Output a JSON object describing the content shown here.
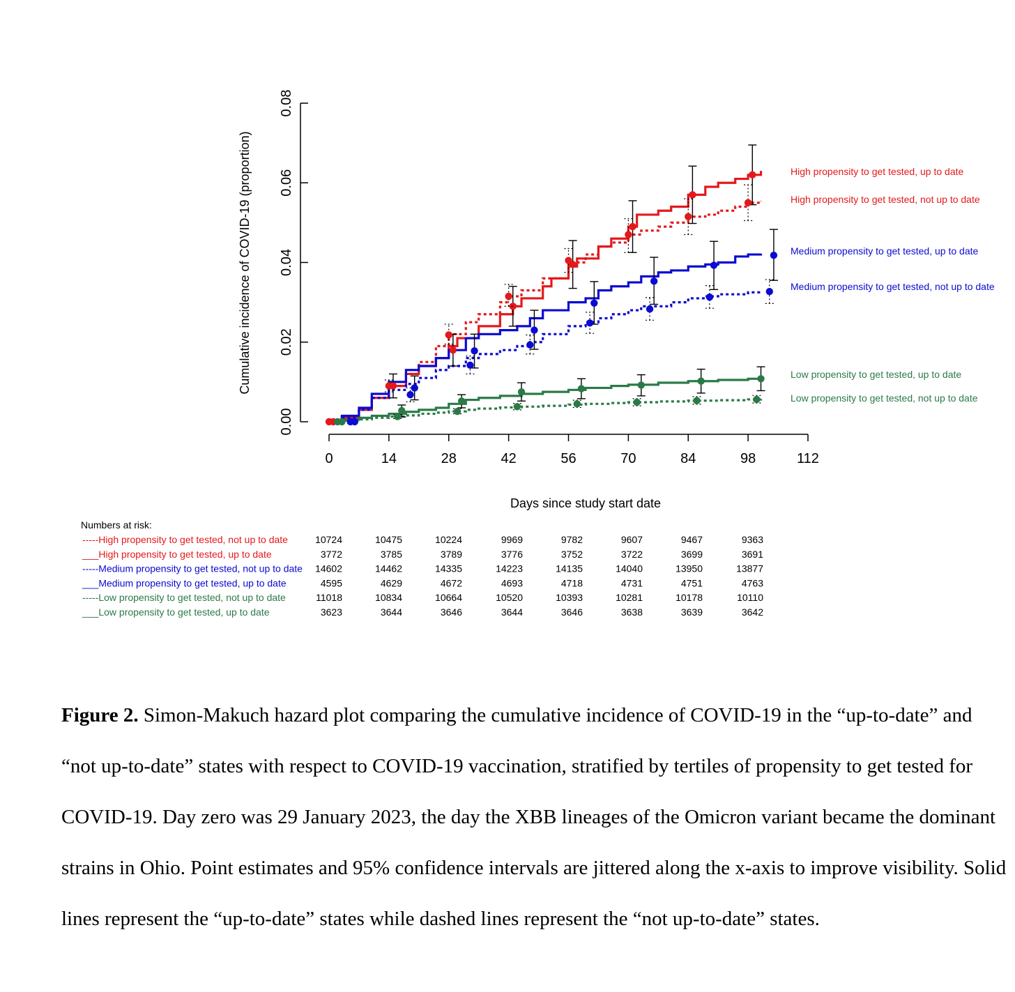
{
  "chart_data": {
    "type": "line",
    "title": "",
    "xlabel": "Days since study start date",
    "ylabel": "Cumulative incidence of COVID-19 (proportion)",
    "xlim": [
      0,
      112
    ],
    "ylim": [
      0,
      0.08
    ],
    "x_ticks": [
      "0",
      "14",
      "28",
      "42",
      "56",
      "70",
      "84",
      "98",
      "112"
    ],
    "y_ticks": [
      "0.00",
      "0.02",
      "0.04",
      "0.06",
      "0.08"
    ],
    "grid": false,
    "legend_placement": "right",
    "series": [
      {
        "name": "High propensity to get tested, up to date",
        "color": "#e3191c",
        "style": "solid",
        "x": [
          0,
          3,
          7,
          10,
          14,
          18,
          21,
          25,
          28,
          30,
          35,
          40,
          43,
          45,
          50,
          52,
          56,
          58,
          63,
          66,
          70,
          72,
          77,
          80,
          84,
          88,
          91,
          95,
          98,
          101
        ],
        "y": [
          0,
          0.001,
          0.003,
          0.006,
          0.009,
          0.012,
          0.014,
          0.016,
          0.019,
          0.021,
          0.024,
          0.027,
          0.029,
          0.031,
          0.034,
          0.036,
          0.039,
          0.041,
          0.044,
          0.046,
          0.049,
          0.052,
          0.053,
          0.054,
          0.057,
          0.059,
          0.06,
          0.061,
          0.062,
          0.063
        ],
        "points": [
          {
            "x": 1,
            "y": 0,
            "lo": 0,
            "hi": 0
          },
          {
            "x": 15,
            "y": 0.009,
            "lo": 0.006,
            "hi": 0.012
          },
          {
            "x": 29,
            "y": 0.018,
            "lo": 0.014,
            "hi": 0.022
          },
          {
            "x": 43,
            "y": 0.029,
            "lo": 0.024,
            "hi": 0.034
          },
          {
            "x": 57,
            "y": 0.0395,
            "lo": 0.0335,
            "hi": 0.0455
          },
          {
            "x": 71,
            "y": 0.049,
            "lo": 0.0425,
            "hi": 0.0555
          },
          {
            "x": 85,
            "y": 0.057,
            "lo": 0.0498,
            "hi": 0.0642
          },
          {
            "x": 99,
            "y": 0.062,
            "lo": 0.0545,
            "hi": 0.0695
          }
        ]
      },
      {
        "name": "High propensity to get tested, not up to date",
        "color": "#e3191c",
        "style": "dashed",
        "x": [
          0,
          3,
          7,
          10,
          14,
          18,
          21,
          25,
          28,
          32,
          35,
          40,
          42,
          45,
          50,
          56,
          60,
          63,
          66,
          70,
          73,
          77,
          80,
          84,
          88,
          91,
          95,
          98,
          101
        ],
        "y": [
          0,
          0.001,
          0.003,
          0.006,
          0.009,
          0.012,
          0.015,
          0.019,
          0.022,
          0.025,
          0.027,
          0.03,
          0.0315,
          0.033,
          0.036,
          0.04,
          0.042,
          0.044,
          0.045,
          0.047,
          0.048,
          0.049,
          0.05,
          0.0515,
          0.052,
          0.053,
          0.054,
          0.055,
          0.0555
        ],
        "points": [
          {
            "x": 0,
            "y": 0,
            "lo": 0,
            "hi": 0
          },
          {
            "x": 14,
            "y": 0.009,
            "lo": 0.0075,
            "hi": 0.0105
          },
          {
            "x": 28,
            "y": 0.0218,
            "lo": 0.0195,
            "hi": 0.0245
          },
          {
            "x": 42,
            "y": 0.0315,
            "lo": 0.029,
            "hi": 0.0345
          },
          {
            "x": 56,
            "y": 0.0405,
            "lo": 0.0375,
            "hi": 0.0435
          },
          {
            "x": 70,
            "y": 0.047,
            "lo": 0.0425,
            "hi": 0.051
          },
          {
            "x": 84,
            "y": 0.0515,
            "lo": 0.047,
            "hi": 0.056
          },
          {
            "x": 98,
            "y": 0.055,
            "lo": 0.0505,
            "hi": 0.0595
          }
        ]
      },
      {
        "name": "Medium propensity to get tested, up to date",
        "color": "#0b0bd1",
        "style": "solid",
        "x": [
          0,
          3,
          7,
          10,
          14,
          18,
          21,
          25,
          28,
          32,
          35,
          40,
          44,
          47,
          50,
          56,
          60,
          63,
          66,
          70,
          73,
          77,
          80,
          84,
          88,
          91,
          95,
          98,
          101
        ],
        "y": [
          0,
          0.0015,
          0.0035,
          0.007,
          0.01,
          0.013,
          0.014,
          0.016,
          0.018,
          0.021,
          0.022,
          0.023,
          0.024,
          0.026,
          0.028,
          0.03,
          0.031,
          0.033,
          0.034,
          0.035,
          0.0365,
          0.0375,
          0.038,
          0.039,
          0.0395,
          0.04,
          0.0415,
          0.042,
          0.0422
        ],
        "points": [
          {
            "x": 6,
            "y": 0,
            "lo": 0,
            "hi": 0
          },
          {
            "x": 20,
            "y": 0.0085,
            "lo": 0.0055,
            "hi": 0.0115
          },
          {
            "x": 34,
            "y": 0.0178,
            "lo": 0.0135,
            "hi": 0.022
          },
          {
            "x": 48,
            "y": 0.023,
            "lo": 0.0182,
            "hi": 0.028
          },
          {
            "x": 62,
            "y": 0.0298,
            "lo": 0.0245,
            "hi": 0.0352
          },
          {
            "x": 76,
            "y": 0.0353,
            "lo": 0.0295,
            "hi": 0.0413
          },
          {
            "x": 90,
            "y": 0.0393,
            "lo": 0.0332,
            "hi": 0.0453
          },
          {
            "x": 104,
            "y": 0.0418,
            "lo": 0.0355,
            "hi": 0.0483
          }
        ]
      },
      {
        "name": "Medium propensity to get tested, not up to date",
        "color": "#0b0bd1",
        "style": "dashed",
        "x": [
          0,
          3,
          7,
          10,
          14,
          18,
          21,
          25,
          28,
          32,
          35,
          40,
          44,
          47,
          50,
          56,
          60,
          63,
          66,
          70,
          73,
          77,
          80,
          84,
          88,
          91,
          95,
          98,
          101
        ],
        "y": [
          0,
          0.001,
          0.003,
          0.006,
          0.008,
          0.0095,
          0.011,
          0.013,
          0.014,
          0.016,
          0.017,
          0.018,
          0.019,
          0.02,
          0.022,
          0.024,
          0.025,
          0.026,
          0.027,
          0.028,
          0.029,
          0.029,
          0.03,
          0.031,
          0.0315,
          0.032,
          0.032,
          0.0325,
          0.033
        ],
        "points": [
          {
            "x": 5,
            "y": 0,
            "lo": 0,
            "hi": 0
          },
          {
            "x": 19,
            "y": 0.0068,
            "lo": 0.005,
            "hi": 0.0085
          },
          {
            "x": 33,
            "y": 0.0142,
            "lo": 0.012,
            "hi": 0.0165
          },
          {
            "x": 47,
            "y": 0.0193,
            "lo": 0.017,
            "hi": 0.0218
          },
          {
            "x": 61,
            "y": 0.0248,
            "lo": 0.0222,
            "hi": 0.0275
          },
          {
            "x": 75,
            "y": 0.0283,
            "lo": 0.0255,
            "hi": 0.0312
          },
          {
            "x": 89,
            "y": 0.0313,
            "lo": 0.0285,
            "hi": 0.0342
          },
          {
            "x": 103,
            "y": 0.0327,
            "lo": 0.0297,
            "hi": 0.0357
          }
        ]
      },
      {
        "name": "Low propensity to get tested, up to date",
        "color": "#2a7a47",
        "style": "solid",
        "x": [
          0,
          3,
          7,
          10,
          14,
          18,
          21,
          25,
          28,
          32,
          35,
          40,
          45,
          50,
          56,
          60,
          66,
          70,
          77,
          84,
          91,
          98,
          101
        ],
        "y": [
          0,
          0.0005,
          0.001,
          0.0015,
          0.002,
          0.0025,
          0.003,
          0.0035,
          0.0045,
          0.0055,
          0.006,
          0.0065,
          0.007,
          0.0075,
          0.008,
          0.0085,
          0.009,
          0.0093,
          0.0098,
          0.0102,
          0.0105,
          0.0108,
          0.011
        ],
        "points": [
          {
            "x": 3,
            "y": 0,
            "lo": 0,
            "hi": 0
          },
          {
            "x": 17,
            "y": 0.0028,
            "lo": 0.0012,
            "hi": 0.0042
          },
          {
            "x": 31,
            "y": 0.0052,
            "lo": 0.0035,
            "hi": 0.0068
          },
          {
            "x": 45,
            "y": 0.0075,
            "lo": 0.0052,
            "hi": 0.0098
          },
          {
            "x": 59,
            "y": 0.0083,
            "lo": 0.0058,
            "hi": 0.0108
          },
          {
            "x": 73,
            "y": 0.0092,
            "lo": 0.0065,
            "hi": 0.0118
          },
          {
            "x": 87,
            "y": 0.0102,
            "lo": 0.0072,
            "hi": 0.0132
          },
          {
            "x": 101,
            "y": 0.0108,
            "lo": 0.0078,
            "hi": 0.0138
          }
        ]
      },
      {
        "name": "Low propensity to get tested, not up to date",
        "color": "#2a7a47",
        "style": "dashed",
        "x": [
          0,
          3,
          7,
          10,
          14,
          18,
          21,
          25,
          28,
          32,
          35,
          40,
          45,
          50,
          56,
          60,
          66,
          70,
          77,
          84,
          91,
          98,
          101
        ],
        "y": [
          0,
          0.0003,
          0.0006,
          0.001,
          0.0013,
          0.0016,
          0.002,
          0.0023,
          0.0026,
          0.003,
          0.0033,
          0.0036,
          0.0038,
          0.004,
          0.0043,
          0.0045,
          0.0047,
          0.0049,
          0.0051,
          0.0053,
          0.0054,
          0.0056,
          0.0057
        ],
        "points": [
          {
            "x": 2,
            "y": 0,
            "lo": 0,
            "hi": 0
          },
          {
            "x": 16,
            "y": 0.0013,
            "lo": 0.0008,
            "hi": 0.0018
          },
          {
            "x": 30,
            "y": 0.0026,
            "lo": 0.002,
            "hi": 0.0033
          },
          {
            "x": 44,
            "y": 0.0038,
            "lo": 0.003,
            "hi": 0.0046
          },
          {
            "x": 58,
            "y": 0.0045,
            "lo": 0.0036,
            "hi": 0.0054
          },
          {
            "x": 72,
            "y": 0.0049,
            "lo": 0.004,
            "hi": 0.0058
          },
          {
            "x": 86,
            "y": 0.0053,
            "lo": 0.0044,
            "hi": 0.0063
          },
          {
            "x": 100,
            "y": 0.0056,
            "lo": 0.0047,
            "hi": 0.0066
          }
        ]
      }
    ],
    "legend": [
      {
        "label": "High propensity to get tested, up to date",
        "color": "#e3191c"
      },
      {
        "label": "High propensity to get tested, not up to date",
        "color": "#e3191c"
      },
      {
        "label": "Medium propensity to get tested, up to date",
        "color": "#0b0bd1"
      },
      {
        "label": "Medium propensity to get tested, not up to date",
        "color": "#0b0bd1"
      },
      {
        "label": "Low propensity to get tested, up to date",
        "color": "#2a7a47"
      },
      {
        "label": "Low propensity to get tested, not up to date",
        "color": "#2a7a47"
      }
    ],
    "risk_table": {
      "title": "Numbers at risk:",
      "rows": [
        {
          "label": "-----High propensity to get tested, not up to date",
          "color": "#e3191c",
          "values": [
            "10724",
            "10475",
            "10224",
            "9969",
            "9782",
            "9607",
            "9467",
            "9363"
          ]
        },
        {
          "label": "___High propensity to get tested, up to date",
          "color": "#e3191c",
          "values": [
            "3772",
            "3785",
            "3789",
            "3776",
            "3752",
            "3722",
            "3699",
            "3691"
          ]
        },
        {
          "label": "-----Medium propensity to get tested, not up to date",
          "color": "#0b0bd1",
          "values": [
            "14602",
            "14462",
            "14335",
            "14223",
            "14135",
            "14040",
            "13950",
            "13877"
          ]
        },
        {
          "label": "___Medium propensity to get tested, up to date",
          "color": "#0b0bd1",
          "values": [
            "4595",
            "4629",
            "4672",
            "4693",
            "4718",
            "4731",
            "4751",
            "4763"
          ]
        },
        {
          "label": "-----Low propensity to get tested, not up to date",
          "color": "#2a7a47",
          "values": [
            "11018",
            "10834",
            "10664",
            "10520",
            "10393",
            "10281",
            "10178",
            "10110"
          ]
        },
        {
          "label": "___Low propensity to get tested, up to date",
          "color": "#2a7a47",
          "values": [
            "3623",
            "3644",
            "3646",
            "3644",
            "3646",
            "3638",
            "3639",
            "3642"
          ]
        }
      ]
    }
  },
  "caption": {
    "label": "Figure 2.",
    "text": " Simon-Makuch hazard plot comparing the cumulative incidence of COVID-19 in the “up-to-date” and “not up-to-date” states with respect to COVID-19 vaccination, stratified by tertiles of propensity to get tested for COVID-19. Day zero was 29 January 2023, the day the XBB lineages of the Omicron variant became the dominant strains in Ohio. Point estimates and 95% confidence intervals are jittered along the x-axis to improve visibility. Solid lines represent the “up-to-date” states while dashed lines represent the “not up-to-date” states."
  }
}
